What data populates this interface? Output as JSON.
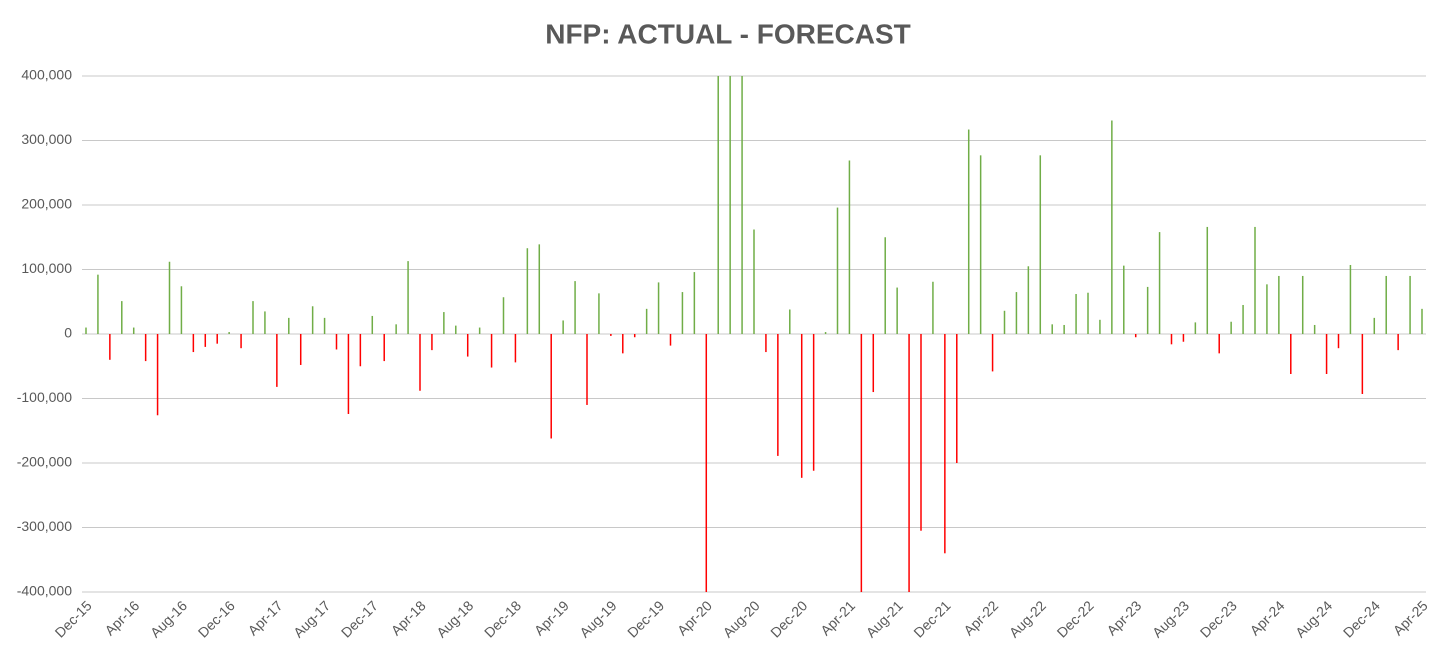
{
  "chart_data": {
    "type": "bar",
    "title": "NFP: ACTUAL - FORECAST",
    "categories": [
      "Dec-15",
      null,
      null,
      null,
      "Apr-16",
      null,
      null,
      null,
      "Aug-16",
      null,
      null,
      null,
      "Dec-16",
      null,
      null,
      null,
      "Apr-17",
      null,
      null,
      null,
      "Aug-17",
      null,
      null,
      null,
      "Dec-17",
      null,
      null,
      null,
      "Apr-18",
      null,
      null,
      null,
      "Aug-18",
      null,
      null,
      null,
      "Dec-18",
      null,
      null,
      null,
      "Apr-19",
      null,
      null,
      null,
      "Aug-19",
      null,
      null,
      null,
      "Dec-19",
      null,
      null,
      null,
      "Apr-20",
      null,
      null,
      null,
      "Aug-20",
      null,
      null,
      null,
      "Dec-20",
      null,
      null,
      null,
      "Apr-21",
      null,
      null,
      null,
      "Aug-21",
      null,
      null,
      null,
      "Dec-21",
      null,
      null,
      null,
      "Apr-22",
      null,
      null,
      null,
      "Aug-22",
      null,
      null,
      null,
      "Dec-22",
      null,
      null,
      null,
      "Apr-23",
      null,
      null,
      null,
      "Aug-23",
      null,
      null,
      null,
      "Dec-23",
      null,
      null,
      null,
      "Apr-24",
      null,
      null,
      null,
      "Aug-24",
      null,
      null,
      null,
      "Dec-24",
      null,
      null,
      null,
      "Apr-25"
    ],
    "values": [
      10000,
      92000,
      -40000,
      51000,
      10000,
      -42000,
      -126000,
      112000,
      74000,
      -28000,
      -20000,
      -15000,
      3000,
      -22000,
      51000,
      35000,
      -82000,
      25000,
      -48000,
      43000,
      25000,
      -24000,
      -124000,
      -50000,
      28000,
      -42000,
      15000,
      113000,
      -88000,
      -25000,
      34000,
      13000,
      -35000,
      10000,
      -52000,
      57000,
      -44000,
      133000,
      139000,
      -162000,
      21000,
      82000,
      -110000,
      63000,
      -3000,
      -30000,
      -5000,
      39000,
      80000,
      -18000,
      65000,
      96000,
      -400000,
      400000,
      400000,
      400000,
      162000,
      -28000,
      -189000,
      38000,
      -223000,
      -212000,
      3000,
      196000,
      269000,
      -400000,
      -90000,
      150000,
      72000,
      -400000,
      -305000,
      81000,
      -340000,
      -200000,
      317000,
      277000,
      -58000,
      36000,
      65000,
      105000,
      277000,
      15000,
      14000,
      62000,
      64000,
      22000,
      331000,
      106000,
      -5000,
      73000,
      158000,
      -16000,
      -12000,
      18000,
      166000,
      -30000,
      19000,
      45000,
      166000,
      77000,
      90000,
      -62000,
      90000,
      14000,
      -62000,
      -22000,
      107000,
      -93000,
      25000,
      90000,
      -25000,
      90000,
      39000
    ],
    "positive_color": "#70ad47",
    "negative_color": "#ff0000",
    "ylim": [
      -400000,
      400000
    ],
    "yticks": [
      {
        "value": -400000,
        "label": "-400,000"
      },
      {
        "value": -300000,
        "label": "-300,000"
      },
      {
        "value": -200000,
        "label": "-200,000"
      },
      {
        "value": -100000,
        "label": "-100,000"
      },
      0,
      {
        "value": 100000,
        "label": "100,000"
      },
      {
        "value": 200000,
        "label": "200,000"
      },
      {
        "value": 300000,
        "label": "300,000"
      },
      {
        "value": 400000,
        "label": "400,000"
      }
    ],
    "grid": true
  }
}
